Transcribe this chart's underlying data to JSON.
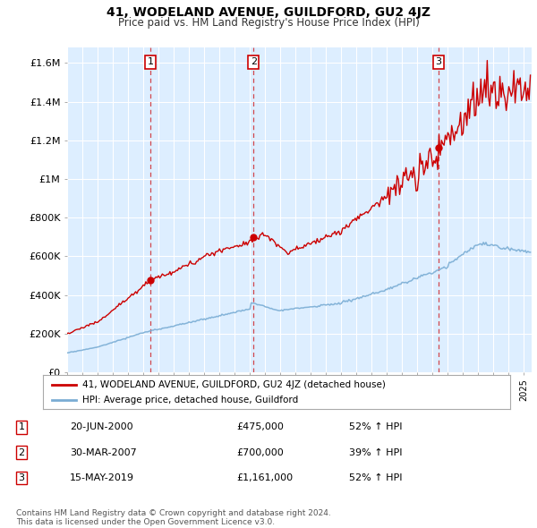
{
  "title": "41, WODELAND AVENUE, GUILDFORD, GU2 4JZ",
  "subtitle": "Price paid vs. HM Land Registry's House Price Index (HPI)",
  "ylabel_ticks": [
    "£0",
    "£200K",
    "£400K",
    "£600K",
    "£800K",
    "£1M",
    "£1.2M",
    "£1.4M",
    "£1.6M"
  ],
  "ytick_values": [
    0,
    200000,
    400000,
    600000,
    800000,
    1000000,
    1200000,
    1400000,
    1600000
  ],
  "ylim": [
    0,
    1680000
  ],
  "xlim_start": 1995.0,
  "xlim_end": 2025.5,
  "sale_dates": [
    2000.47,
    2007.24,
    2019.37
  ],
  "sale_prices": [
    475000,
    700000,
    1161000
  ],
  "sale_labels": [
    "1",
    "2",
    "3"
  ],
  "legend_red": "41, WODELAND AVENUE, GUILDFORD, GU2 4JZ (detached house)",
  "legend_blue": "HPI: Average price, detached house, Guildford",
  "table_rows": [
    [
      "1",
      "20-JUN-2000",
      "£475,000",
      "52% ↑ HPI"
    ],
    [
      "2",
      "30-MAR-2007",
      "£700,000",
      "39% ↑ HPI"
    ],
    [
      "3",
      "15-MAY-2019",
      "£1,161,000",
      "52% ↑ HPI"
    ]
  ],
  "footer": "Contains HM Land Registry data © Crown copyright and database right 2024.\nThis data is licensed under the Open Government Licence v3.0.",
  "red_color": "#cc0000",
  "blue_color": "#7aadd4",
  "bg_color": "#ddeeff",
  "grid_color": "#ffffff"
}
